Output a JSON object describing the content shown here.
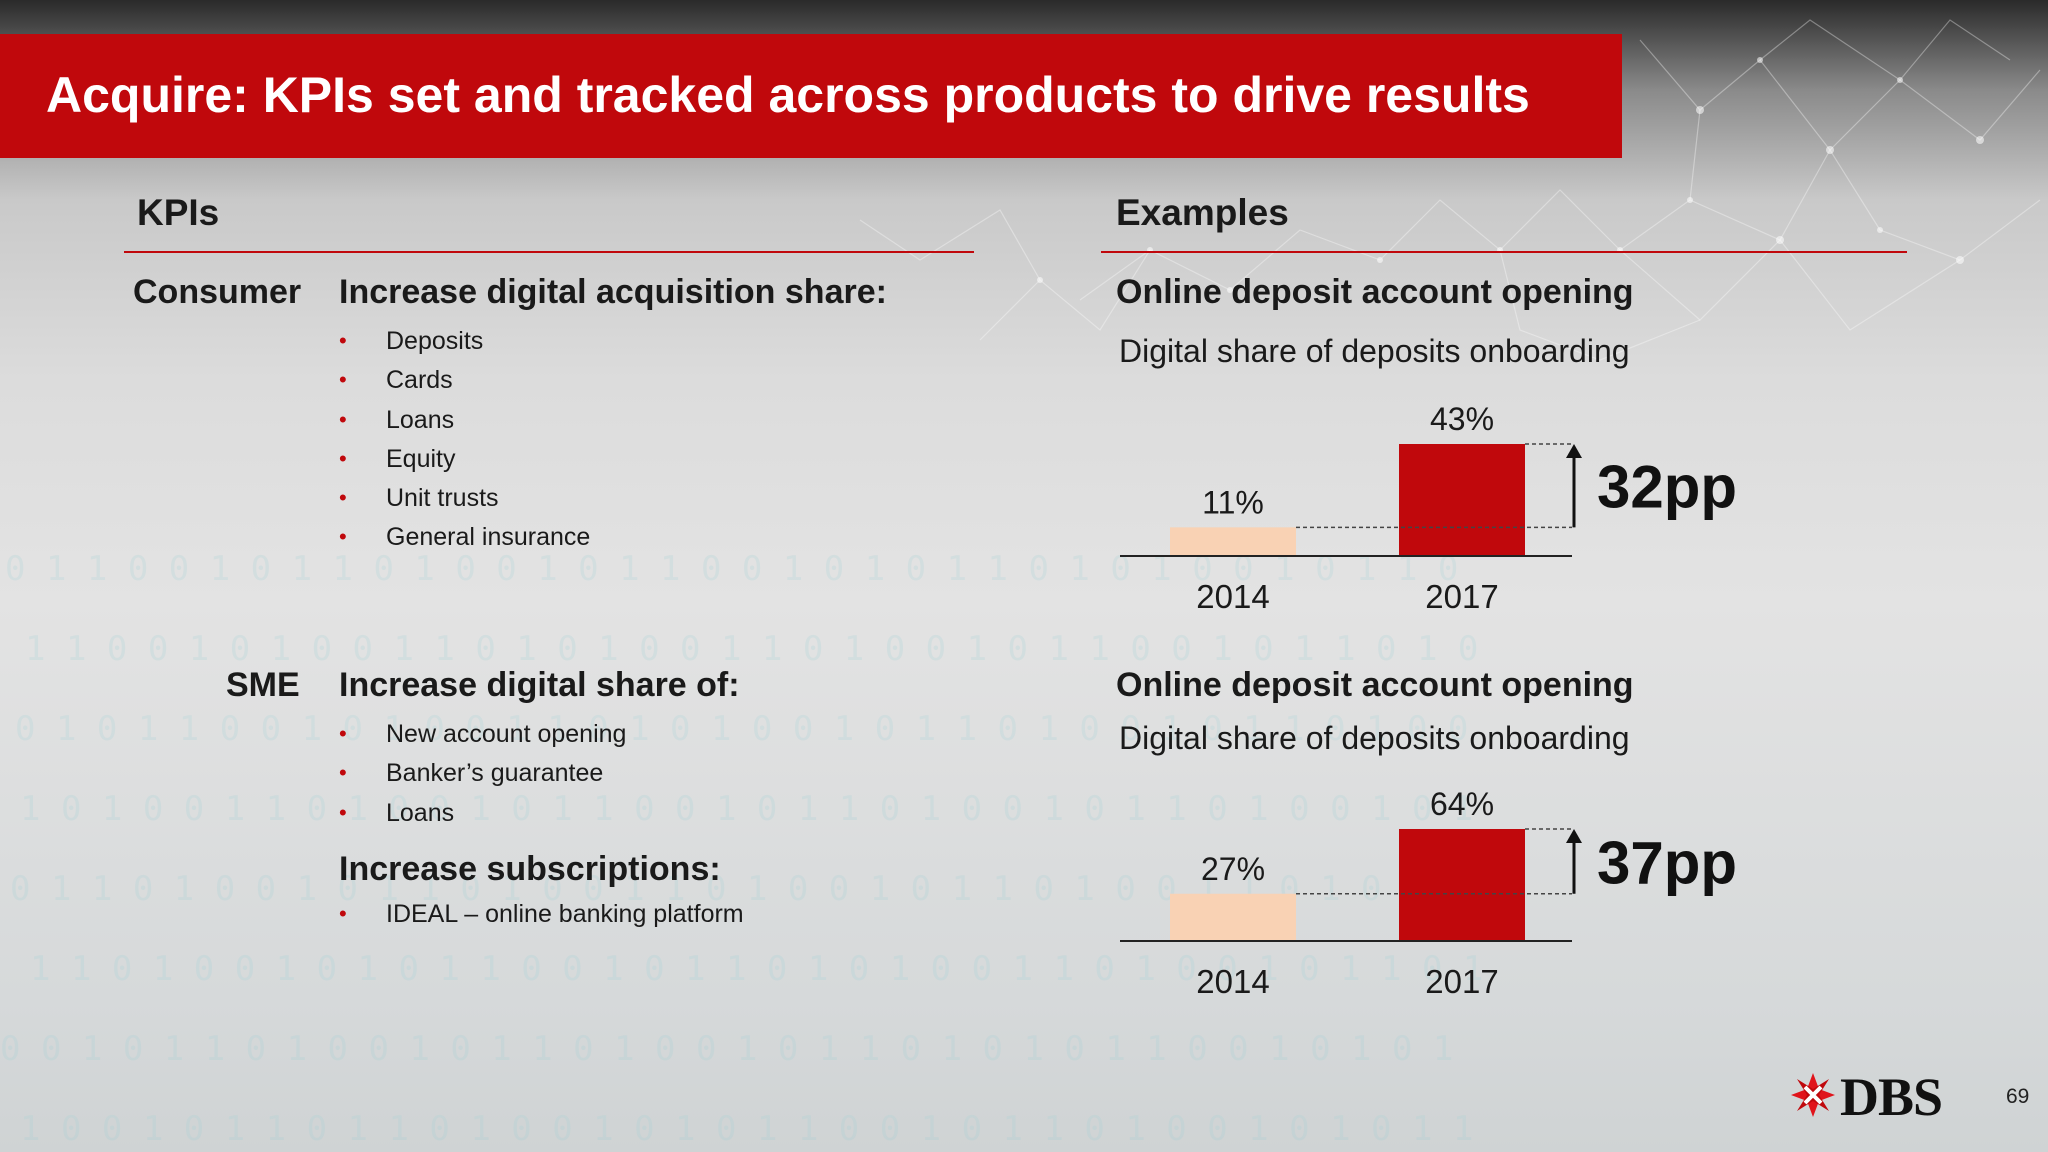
{
  "title": "Acquire: KPIs set and tracked across products to drive results",
  "kpis": {
    "header": "KPIs",
    "consumer": {
      "label": "Consumer",
      "heading": "Increase digital acquisition share:",
      "items": [
        "Deposits",
        "Cards",
        "Loans",
        "Equity",
        "Unit trusts",
        "General insurance"
      ]
    },
    "sme": {
      "label": "SME",
      "heading": "Increase digital share of:",
      "items": [
        "New account opening",
        "Banker’s guarantee",
        "Loans"
      ],
      "heading2": "Increase subscriptions:",
      "items2": [
        "IDEAL – online banking platform"
      ]
    }
  },
  "examples": {
    "header": "Examples"
  },
  "chart_data": [
    {
      "type": "bar",
      "title": "Online deposit account opening",
      "subtitle": "Digital share of deposits onboarding",
      "categories": [
        "2014",
        "2017"
      ],
      "values": [
        11,
        43
      ],
      "value_labels": [
        "11%",
        "43%"
      ],
      "unit": "%",
      "ylim": [
        0,
        43
      ],
      "annotation": "32pp",
      "colors": [
        "#f9d2b4",
        "#c0080c"
      ],
      "grid": false
    },
    {
      "type": "bar",
      "title": "Online deposit account opening",
      "subtitle": "Digital share of deposits onboarding",
      "categories": [
        "2014",
        "2017"
      ],
      "values": [
        27,
        64
      ],
      "value_labels": [
        "27%",
        "64%"
      ],
      "unit": "%",
      "ylim": [
        0,
        64
      ],
      "annotation": "37pp",
      "colors": [
        "#f9d2b4",
        "#c0080c"
      ],
      "grid": false
    }
  ],
  "footer": {
    "brand": "DBS",
    "page_number": "69"
  },
  "colors": {
    "accent": "#c0080c",
    "bar_light": "#f9d2b4"
  }
}
